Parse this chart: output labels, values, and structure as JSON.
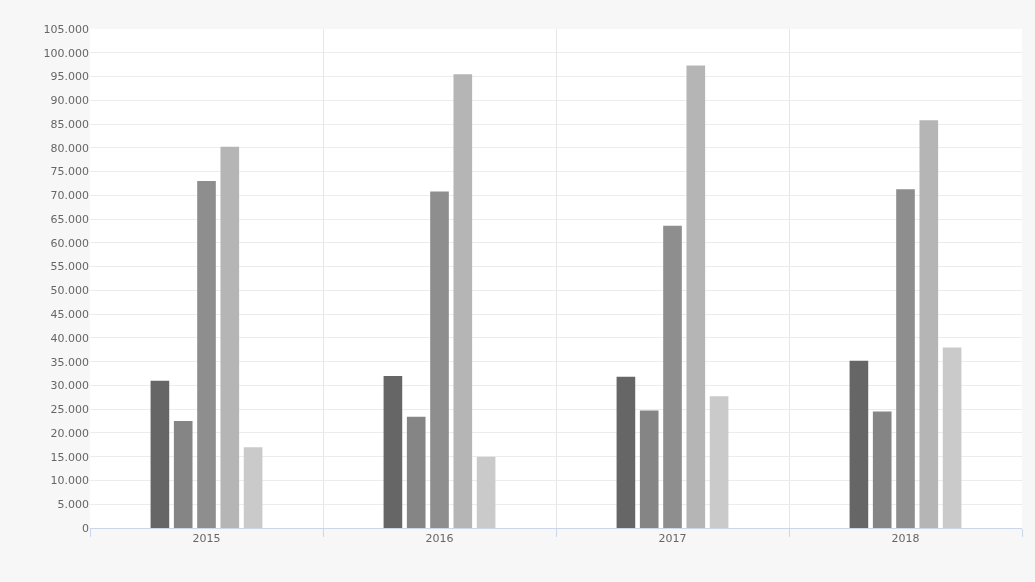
{
  "chart_data": {
    "type": "bar",
    "categories": [
      "2015",
      "2016",
      "2017",
      "2018"
    ],
    "series": [
      {
        "color": "#666666",
        "values": [
          31000,
          32000,
          31800,
          35200
        ]
      },
      {
        "color": "#858585",
        "values": [
          22500,
          23400,
          24700,
          24500
        ]
      },
      {
        "color": "#8e8e8e",
        "values": [
          73000,
          70800,
          63600,
          71300
        ]
      },
      {
        "color": "#b5b5b5",
        "values": [
          80200,
          95500,
          97300,
          85800
        ]
      },
      {
        "color": "#cacaca",
        "values": [
          17000,
          15000,
          27700,
          38000
        ]
      }
    ],
    "ylim": [
      0,
      105000
    ],
    "yticks": [
      {
        "value": 0,
        "label": "0"
      },
      {
        "value": 5000,
        "label": "5.000"
      },
      {
        "value": 10000,
        "label": "10.000"
      },
      {
        "value": 15000,
        "label": "15.000"
      },
      {
        "value": 20000,
        "label": "20.000"
      },
      {
        "value": 25000,
        "label": "25.000"
      },
      {
        "value": 30000,
        "label": "30.000"
      },
      {
        "value": 35000,
        "label": "35.000"
      },
      {
        "value": 40000,
        "label": "40.000"
      },
      {
        "value": 45000,
        "label": "45.000"
      },
      {
        "value": 50000,
        "label": "50.000"
      },
      {
        "value": 55000,
        "label": "55.000"
      },
      {
        "value": 60000,
        "label": "60.000"
      },
      {
        "value": 65000,
        "label": "65.000"
      },
      {
        "value": 70000,
        "label": "70.000"
      },
      {
        "value": 75000,
        "label": "75.000"
      },
      {
        "value": 80000,
        "label": "80.000"
      },
      {
        "value": 85000,
        "label": "85.000"
      },
      {
        "value": 90000,
        "label": "90.000"
      },
      {
        "value": 95000,
        "label": "95.000"
      },
      {
        "value": 100000,
        "label": "100.000"
      },
      {
        "value": 105000,
        "label": "105.000"
      }
    ],
    "grid": true
  }
}
